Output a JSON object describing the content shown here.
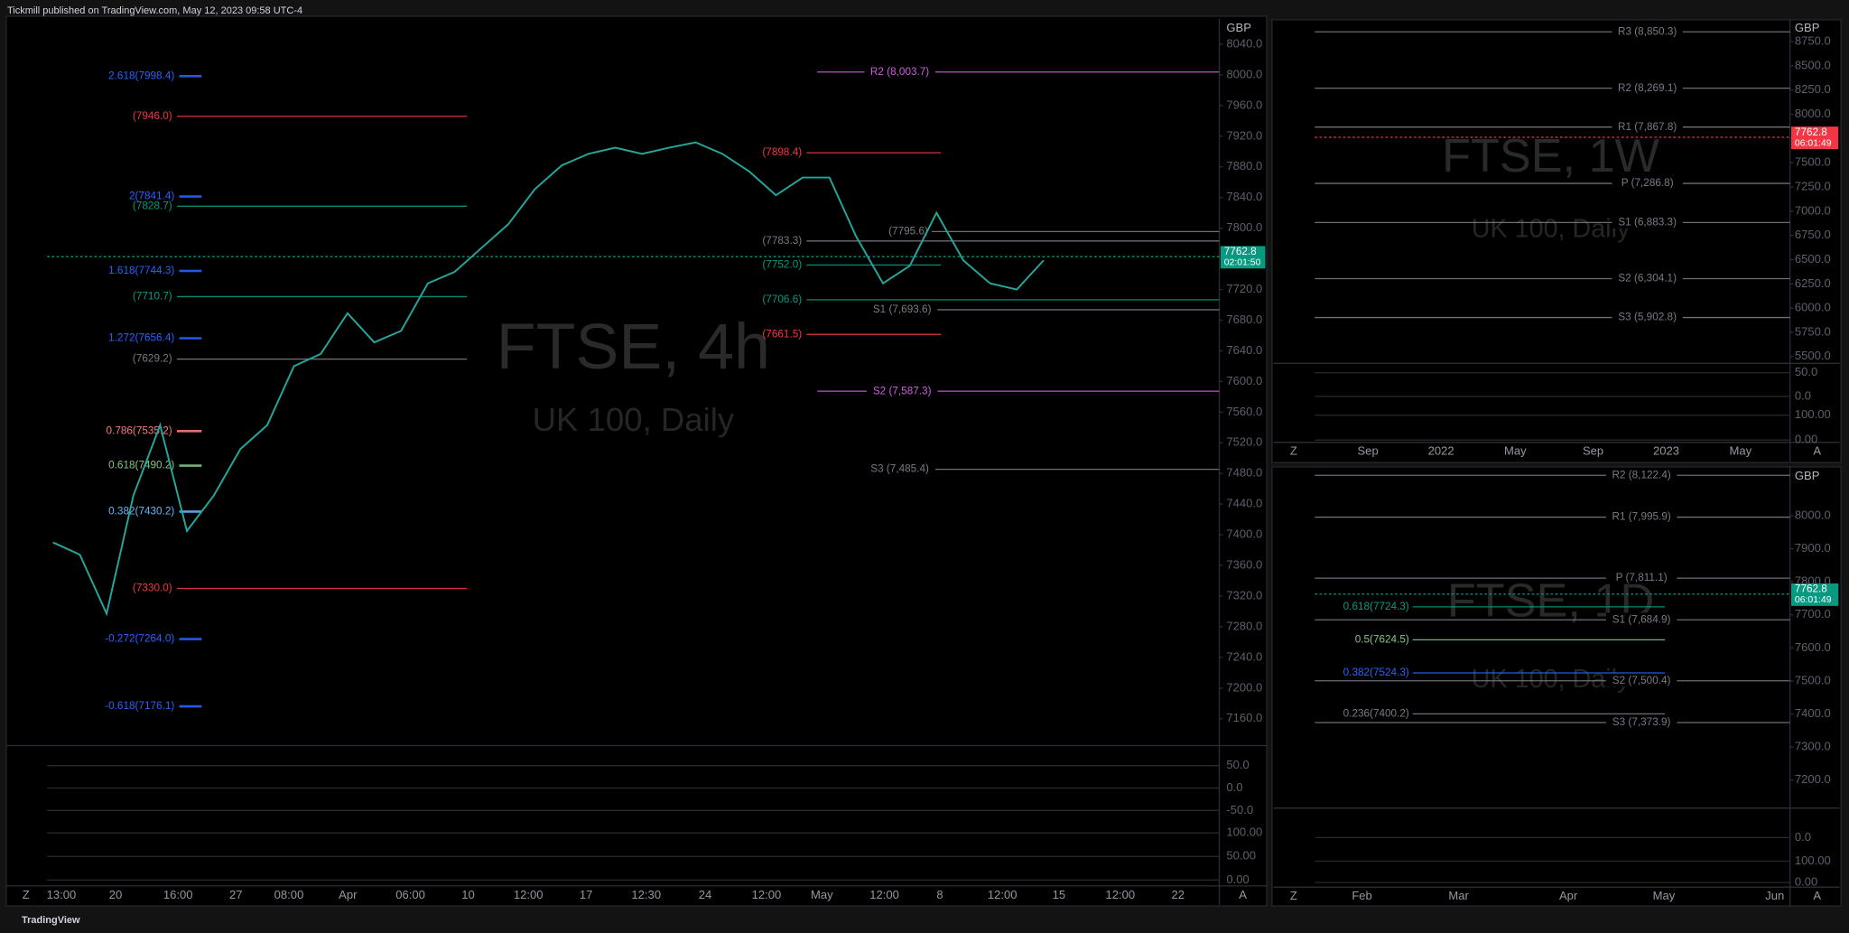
{
  "header": {
    "text": "Tickmill published on TradingView.com, May 12, 2023 09:58 UTC-4"
  },
  "footer": {
    "brand": "TradingView"
  },
  "main": {
    "watermark": "FTSE, 4h",
    "subtitle": "UK 100, Daily",
    "currency": "GBP",
    "price": "7762.8",
    "countdown": "02:01:50",
    "ylim": [
      7125,
      8070
    ],
    "yticks": [
      "8040.0",
      "8000.0",
      "7960.0",
      "7920.0",
      "7880.0",
      "7840.0",
      "7800.0",
      "7760.0",
      "7720.0",
      "7680.0",
      "7640.0",
      "7600.0",
      "7560.0",
      "7520.0",
      "7480.0",
      "7440.0",
      "7400.0",
      "7360.0",
      "7320.0",
      "7280.0",
      "7240.0",
      "7200.0",
      "7160.0"
    ],
    "xticks": [
      "13:00",
      "20",
      "16:00",
      "27",
      "08:00",
      "Apr",
      "06:00",
      "10",
      "12:00",
      "17",
      "12:30",
      "24",
      "12:00",
      "May",
      "12:00",
      "8",
      "12:00",
      "15",
      "12:00",
      "22"
    ],
    "levels": [
      {
        "label": "2.618(7998.4)",
        "color": "#2962ff"
      },
      {
        "label": "(7946.0)",
        "color": "#f23645"
      },
      {
        "label": "2(7841.4)",
        "color": "#2962ff"
      },
      {
        "label": "(7828.7)",
        "color": "#089981"
      },
      {
        "label": "1.618(7744.3)",
        "color": "#2962ff"
      },
      {
        "label": "(7710.7)",
        "color": "#089981"
      },
      {
        "label": "1.272(7656.4)",
        "color": "#2962ff"
      },
      {
        "label": "(7629.2)",
        "color": "#787b86"
      },
      {
        "label": "0.786(7535.2)",
        "color": "#f77c80"
      },
      {
        "label": "0.618(7490.2)",
        "color": "#81c784"
      },
      {
        "label": "0.382(7430.2)",
        "color": "#64b5f6"
      },
      {
        "label": "(7330.0)",
        "color": "#f23645"
      },
      {
        "label": "-0.272(7264.0)",
        "color": "#2962ff"
      },
      {
        "label": "-0.618(7176.1)",
        "color": "#2962ff"
      },
      {
        "label": "R2 (8,003.7)",
        "color": "#d05ce3"
      },
      {
        "label": "(7898.4)",
        "color": "#f23645"
      },
      {
        "label": "(7795.6)",
        "color": "#787b86"
      },
      {
        "label": "(7783.3)",
        "color": "#787b86"
      },
      {
        "label": "(7752.0)",
        "color": "#089981"
      },
      {
        "label": "(7706.6)",
        "color": "#089981"
      },
      {
        "label": "S1 (7,693.6)",
        "color": "#787b86"
      },
      {
        "label": "(7661.5)",
        "color": "#f23645"
      },
      {
        "label": "S2 (7,587.3)",
        "color": "#d05ce3"
      },
      {
        "label": "S3 (7,485.4)",
        "color": "#787b86"
      }
    ],
    "closes": [
      7390,
      7374,
      7297,
      7451,
      7543,
      7405,
      7451,
      7512,
      7543,
      7620,
      7636,
      7689,
      7651,
      7666,
      7728,
      7743,
      7774,
      7805,
      7851,
      7882,
      7897,
      7905,
      7897,
      7905,
      7912,
      7897,
      7874,
      7843,
      7866,
      7866,
      7789,
      7728,
      7751,
      7820,
      7758,
      7728,
      7720,
      7758
    ],
    "oscillator_labels": [
      "50.0",
      "0.0",
      "-50.0",
      "100.00",
      "50.00",
      "0.00"
    ]
  },
  "weekly": {
    "watermark": "FTSE, 1W",
    "subtitle": "UK 100, Daily",
    "currency": "GBP",
    "price": "7762.8",
    "countdown": "06:01:49",
    "ylim": [
      5430,
      8960
    ],
    "yticks": [
      "8750.0",
      "8500.0",
      "8250.0",
      "8000.0",
      "7750.0",
      "7500.0",
      "7250.0",
      "7000.0",
      "6750.0",
      "6500.0",
      "6250.0",
      "6000.0",
      "5750.0",
      "5500.0"
    ],
    "xticks": [
      "Sep",
      "2022",
      "May",
      "Sep",
      "2023",
      "May"
    ],
    "levels": [
      {
        "label": "R3 (8,850.3)",
        "color": "#787b86"
      },
      {
        "label": "R2 (8,269.1)",
        "color": "#787b86"
      },
      {
        "label": "R1 (7,867.8)",
        "color": "#787b86"
      },
      {
        "label": "P (7,286.8)",
        "color": "#787b86"
      },
      {
        "label": "S1 (6,883.3)",
        "color": "#787b86"
      },
      {
        "label": "S2 (6,304.1)",
        "color": "#787b86"
      },
      {
        "label": "S3 (5,902.8)",
        "color": "#787b86"
      }
    ],
    "oscillator_labels": [
      "50.0",
      "0.0",
      "100.00",
      "0.00"
    ]
  },
  "daily": {
    "watermark": "FTSE, 1D",
    "subtitle": "UK 100, Daily",
    "currency": "GBP",
    "price": "7762.8",
    "countdown": "06:01:49",
    "ylim": [
      7115,
      8140
    ],
    "yticks": [
      "8000.0",
      "7900.0",
      "7800.0",
      "7700.0",
      "7600.0",
      "7500.0",
      "7400.0",
      "7300.0",
      "7200.0"
    ],
    "xticks": [
      "Feb",
      "Mar",
      "Apr",
      "May",
      "Jun"
    ],
    "levels": [
      {
        "label": "R2 (8,122.4)",
        "color": "#787b86"
      },
      {
        "label": "R1 (7,995.9)",
        "color": "#787b86"
      },
      {
        "label": "P (7,811.1)",
        "color": "#787b86"
      },
      {
        "label": "S1 (7,684.9)",
        "color": "#787b86"
      },
      {
        "label": "S2 (7,500.4)",
        "color": "#787b86"
      },
      {
        "label": "S3 (7,373.9)",
        "color": "#787b86"
      },
      {
        "label": "0.618(7724.3)",
        "color": "#089981"
      },
      {
        "label": "0.5(7624.5)",
        "color": "#81c784"
      },
      {
        "label": "0.382(7524.3)",
        "color": "#2962ff"
      },
      {
        "label": "0.236(7400.2)",
        "color": "#787b86"
      }
    ],
    "oscillator_labels": [
      "0.0",
      "100.00",
      "0.00"
    ]
  }
}
